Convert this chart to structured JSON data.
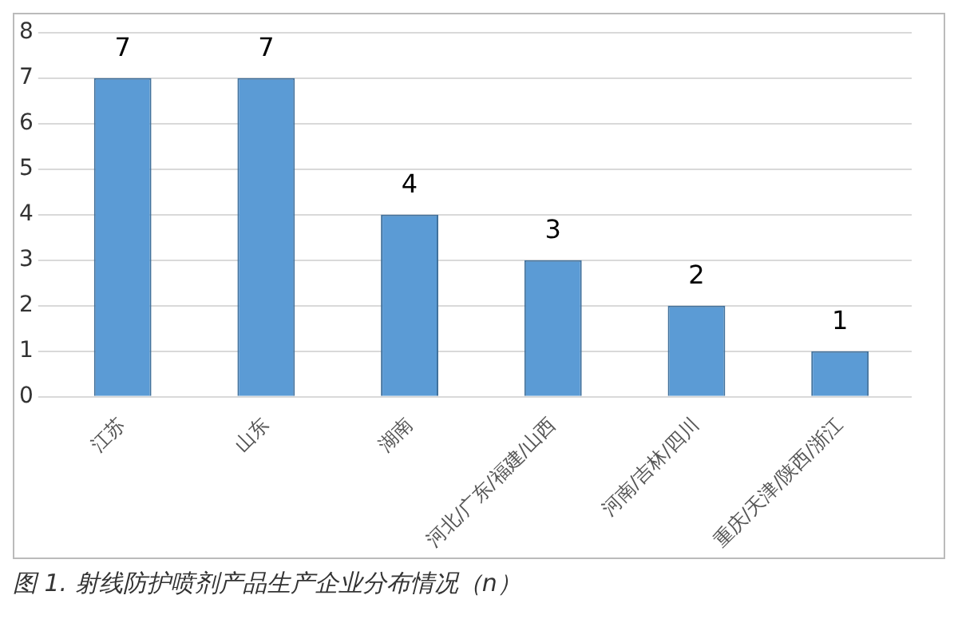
{
  "chart_data": {
    "type": "bar",
    "title": "图 1. 射线防护喷剂产品生产企业分布情况（n）",
    "categories": [
      "江苏",
      "山东",
      "湖南",
      "河北/广东/福建/山西",
      "河南/吉林/四川",
      "重庆/天津/陕西/浙江"
    ],
    "values": [
      7,
      7,
      4,
      3,
      2,
      1
    ],
    "color": "#5b9bd5",
    "ylim": [
      0,
      8
    ],
    "yticks": [
      0,
      1,
      2,
      3,
      4,
      5,
      6,
      7,
      8
    ],
    "grid": "y",
    "data_labels": true
  }
}
